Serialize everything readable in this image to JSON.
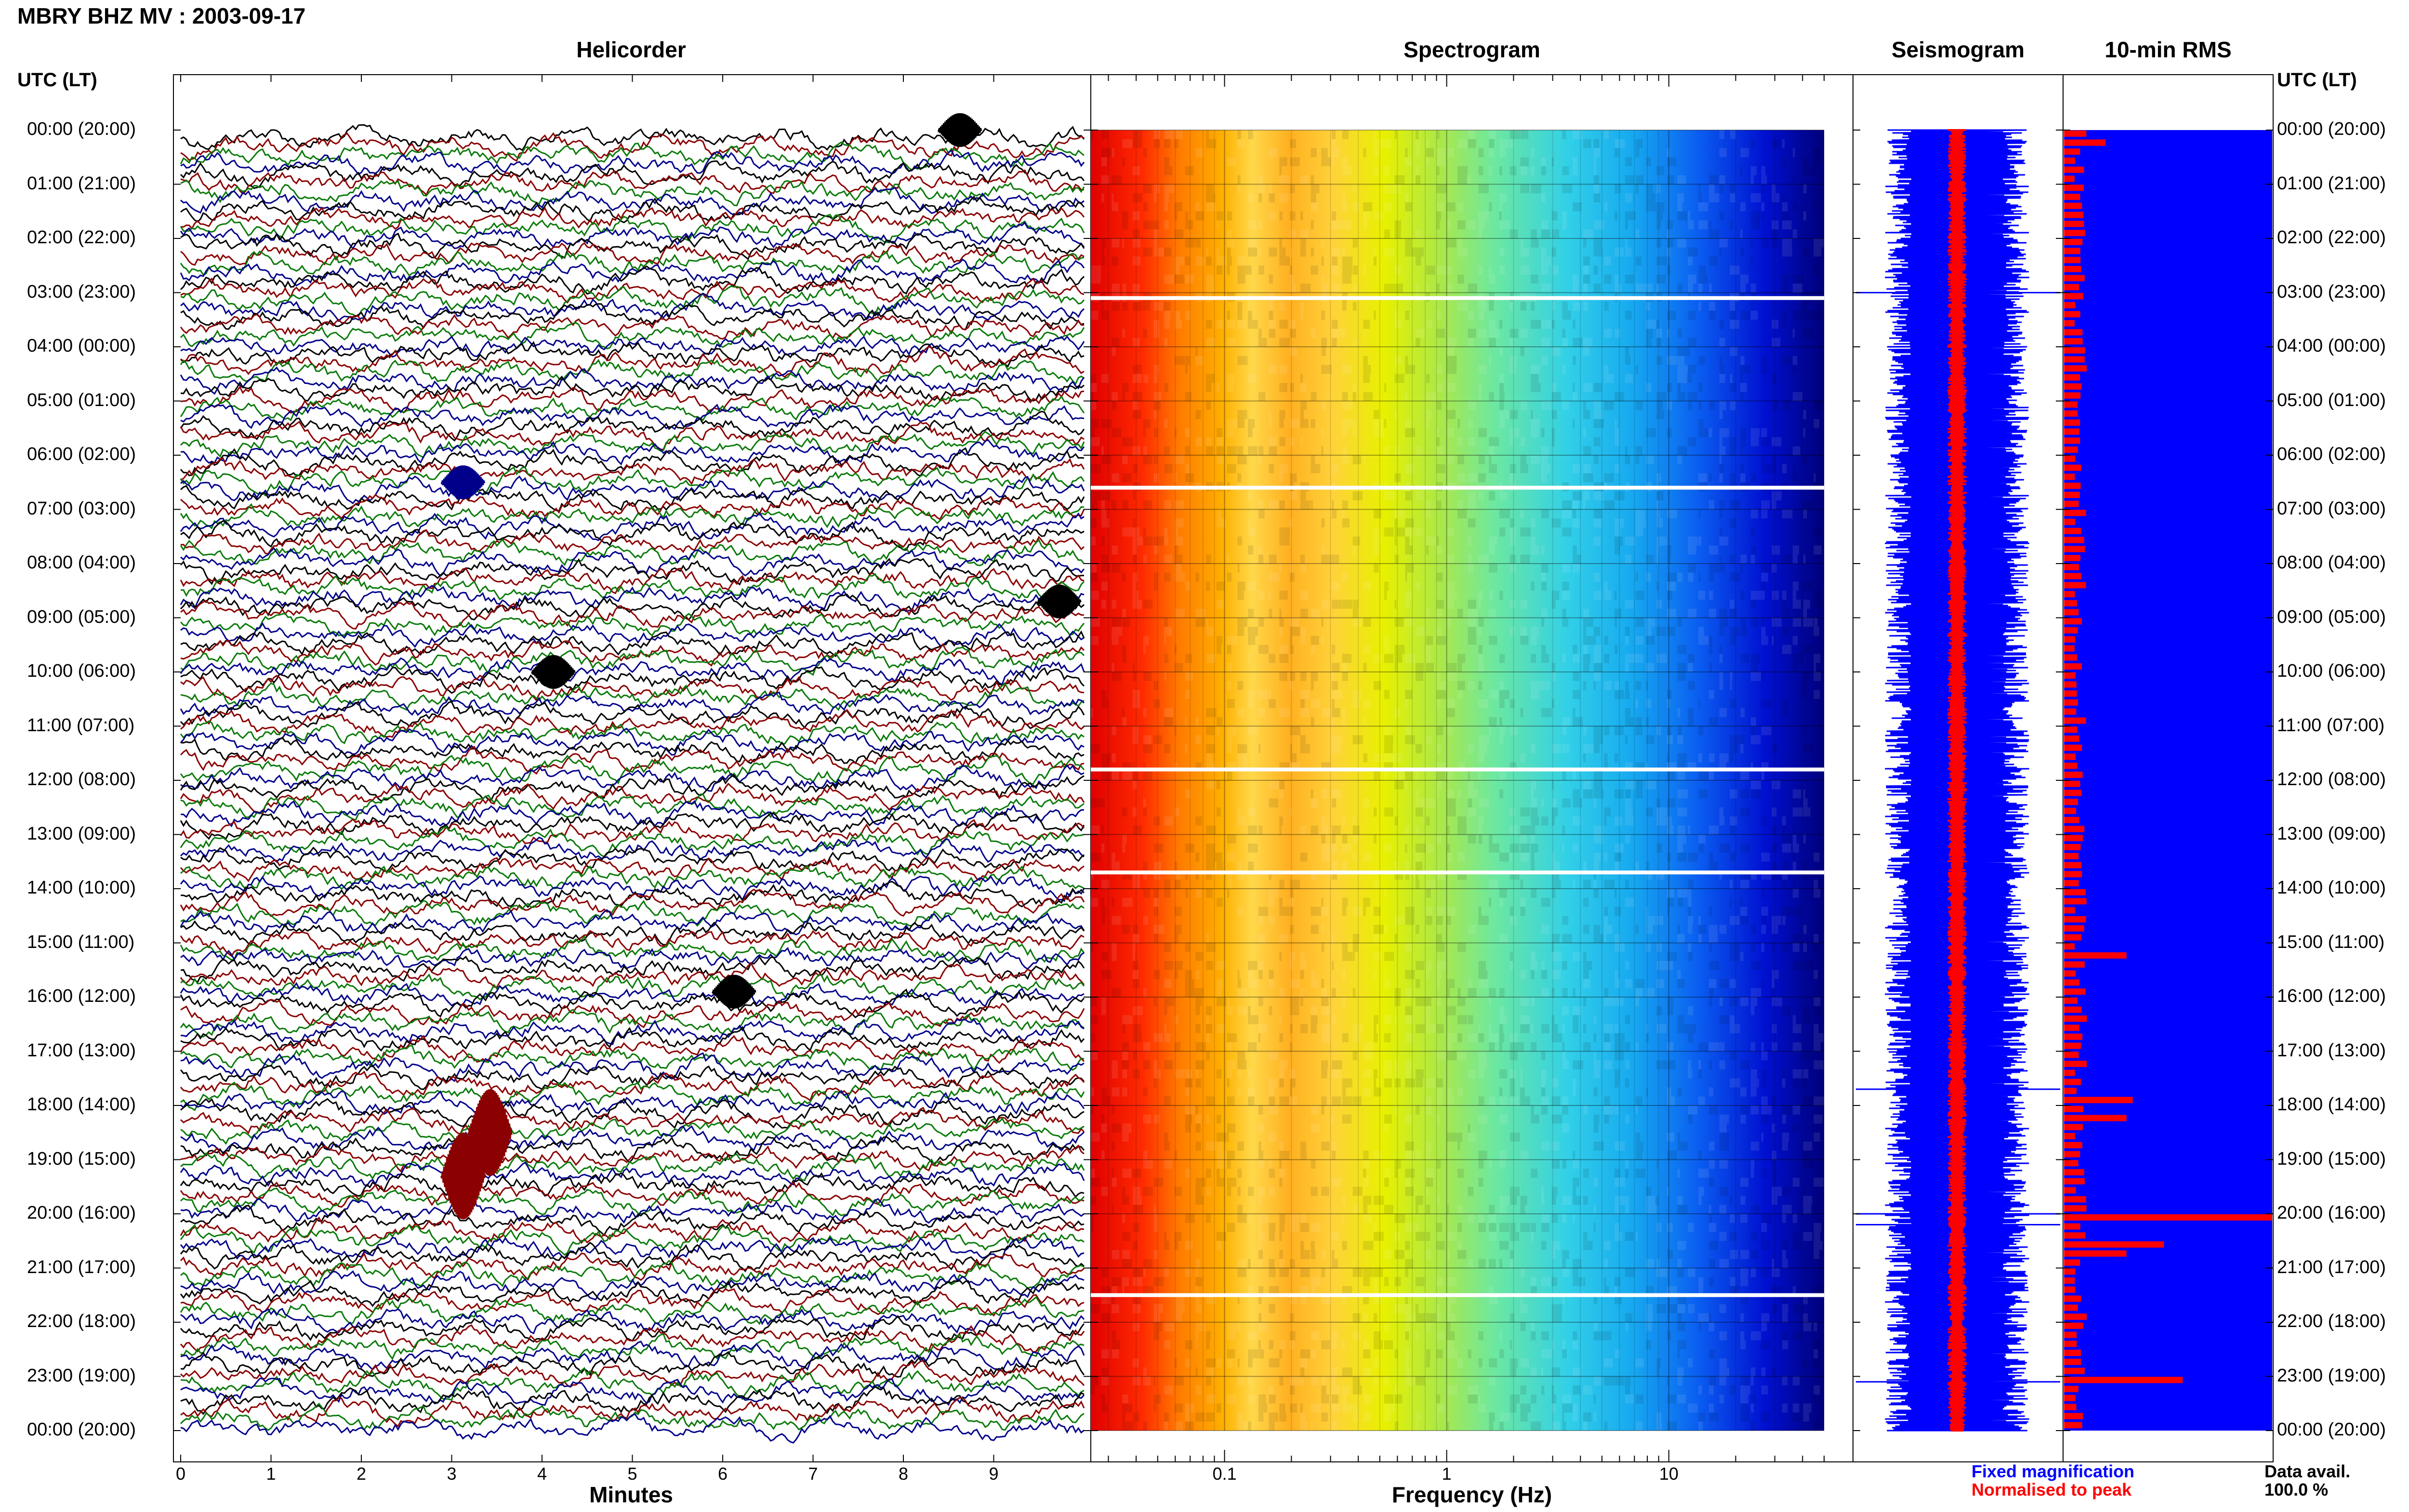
{
  "title": "MBRY BHZ MV : 2003-09-17",
  "panels": {
    "helicorder": "Helicorder",
    "spectrogram": "Spectrogram",
    "seismogram": "Seismogram",
    "rms": "10-min RMS"
  },
  "axis_left_label": "UTC (LT)",
  "axis_right_label": "UTC (LT)",
  "legend": {
    "fixed": "Fixed magnification",
    "normalised": "Normalised to peak",
    "fixed_color": "#0000ff",
    "normalised_color": "#ff0000"
  },
  "data_avail": {
    "label": "Data avail.",
    "value": "100.0 %"
  },
  "colors": {
    "heli_traces": [
      "#000000",
      "#8b0000",
      "#0a7a0a",
      "#00008b"
    ],
    "rms_bar": "#ff0000",
    "rms_bg": "#0000ff"
  },
  "chart_data": [
    {
      "type": "line",
      "name": "helicorder",
      "title": "Helicorder",
      "xlabel": "Minutes",
      "ylabel": "UTC (LT)",
      "xlim": [
        0,
        10
      ],
      "x_ticks": [
        "0",
        "1",
        "2",
        "3",
        "4",
        "5",
        "6",
        "7",
        "8",
        "9"
      ],
      "y_ticks": [
        "00:00 (20:00)",
        "01:00 (21:00)",
        "02:00 (22:00)",
        "03:00 (23:00)",
        "04:00 (00:00)",
        "05:00 (01:00)",
        "06:00 (02:00)",
        "07:00 (03:00)",
        "08:00 (04:00)",
        "09:00 (05:00)",
        "10:00 (06:00)",
        "11:00 (07:00)",
        "12:00 (08:00)",
        "13:00 (09:00)",
        "14:00 (10:00)",
        "15:00 (11:00)",
        "16:00 (12:00)",
        "17:00 (13:00)",
        "18:00 (14:00)",
        "19:00 (15:00)",
        "20:00 (16:00)",
        "21:00 (17:00)",
        "22:00 (18:00)",
        "23:00 (19:00)",
        "00:00 (20:00)"
      ],
      "rows": 144,
      "events": [
        {
          "hour": 0.0,
          "minute": 8.6
        },
        {
          "hour": 6.5,
          "minute": 3.1
        },
        {
          "hour": 8.7,
          "minute": 9.7
        },
        {
          "hour": 10.0,
          "minute": 4.1
        },
        {
          "hour": 15.9,
          "minute": 6.1
        },
        {
          "hour": 18.5,
          "minute": 3.4
        },
        {
          "hour": 19.3,
          "minute": 3.1
        }
      ]
    },
    {
      "type": "heatmap",
      "name": "spectrogram",
      "title": "Spectrogram",
      "xlabel": "Frequency (Hz)",
      "x_scale": "log",
      "xlim": [
        0.025,
        50
      ],
      "x_ticks": [
        "0.1",
        "1",
        "10"
      ],
      "gaps_hours": [
        3.1,
        6.6,
        11.8,
        13.7,
        21.5
      ]
    },
    {
      "type": "line",
      "name": "seismogram",
      "title": "Seismogram",
      "series": [
        {
          "name": "Fixed magnification"
        },
        {
          "name": "Normalised to peak"
        }
      ],
      "spike_hours": [
        3.0,
        17.7,
        20.0,
        20.2,
        23.1
      ]
    },
    {
      "type": "bar",
      "name": "10-min RMS",
      "title": "10-min RMS",
      "orientation": "horizontal",
      "bins": 144,
      "peaks": [
        {
          "hour": 0.3,
          "value": 0.2
        },
        {
          "hour": 15.2,
          "value": 0.3
        },
        {
          "hour": 17.9,
          "value": 0.33
        },
        {
          "hour": 18.3,
          "value": 0.3
        },
        {
          "hour": 20.0,
          "value": 1.0
        },
        {
          "hour": 20.5,
          "value": 0.48
        },
        {
          "hour": 20.8,
          "value": 0.3
        },
        {
          "hour": 23.1,
          "value": 0.57
        }
      ]
    }
  ]
}
